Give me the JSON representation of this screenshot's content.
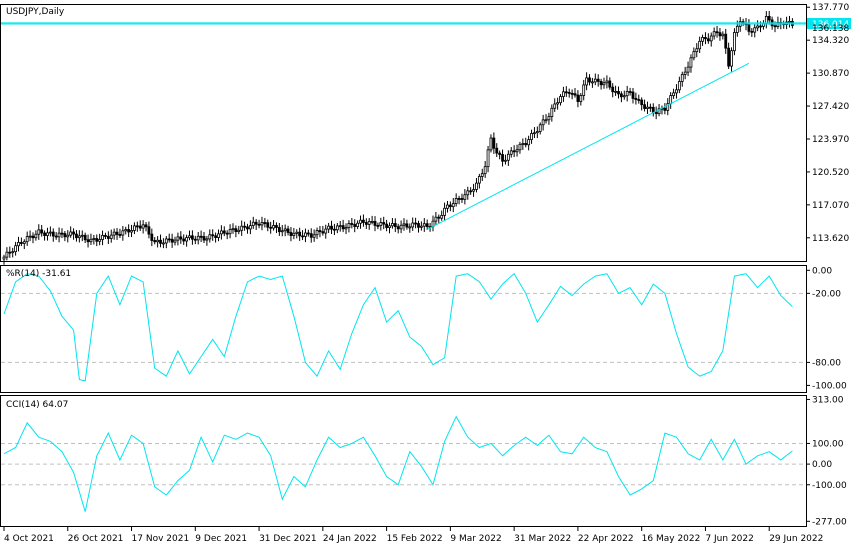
{
  "chart_data": {
    "type": "candlestick",
    "symbol_label": "USDJPY,Daily",
    "colors": {
      "background": "#ffffff",
      "candle": "#000000",
      "indicator_line": "#00e5ee",
      "trend_line": "#00e5ee",
      "price_line": "#00e5ee",
      "grid_dashed": "#c0c0c0",
      "frame": "#000000"
    },
    "price_panel": {
      "ylim": [
        111.4,
        137.9
      ],
      "y_ticks": [
        "137.770",
        "134.320",
        "130.870",
        "127.420",
        "123.970",
        "120.520",
        "117.070",
        "113.620"
      ],
      "current_price_labels": [
        {
          "value": "136.014",
          "highlight": true
        },
        {
          "value": "136.138",
          "highlight": false
        }
      ],
      "trend_line": {
        "from": {
          "bar": 146,
          "price": 114.5
        },
        "to": {
          "bar": 257,
          "price": 131.9
        }
      }
    },
    "x_labels": [
      {
        "bar": 0,
        "text": "4 Oct 2021"
      },
      {
        "bar": 22,
        "text": "26 Oct 2021"
      },
      {
        "bar": 44,
        "text": "17 Nov 2021"
      },
      {
        "bar": 66,
        "text": "9 Dec 2021"
      },
      {
        "bar": 88,
        "text": "31 Dec 2021"
      },
      {
        "bar": 110,
        "text": "24 Jan 2022"
      },
      {
        "bar": 132,
        "text": "15 Feb 2022"
      },
      {
        "bar": 154,
        "text": "9 Mar 2022"
      },
      {
        "bar": 176,
        "text": "31 Mar 2022"
      },
      {
        "bar": 198,
        "text": "22 Apr 2022"
      },
      {
        "bar": 220,
        "text": "16 May 2022"
      },
      {
        "bar": 242,
        "text": "7 Jun 2022"
      },
      {
        "bar": 264,
        "text": "29 Jun 2022"
      }
    ],
    "candles": [
      {
        "bar": 0,
        "close": 111.6
      },
      {
        "bar": 6,
        "close": 113.2
      },
      {
        "bar": 12,
        "close": 114.2
      },
      {
        "bar": 18,
        "close": 113.9
      },
      {
        "bar": 24,
        "close": 114.0
      },
      {
        "bar": 30,
        "close": 113.3
      },
      {
        "bar": 36,
        "close": 113.8
      },
      {
        "bar": 42,
        "close": 114.3
      },
      {
        "bar": 48,
        "close": 115.0
      },
      {
        "bar": 52,
        "close": 113.1
      },
      {
        "bar": 58,
        "close": 113.4
      },
      {
        "bar": 64,
        "close": 113.6
      },
      {
        "bar": 70,
        "close": 113.6
      },
      {
        "bar": 76,
        "close": 114.2
      },
      {
        "bar": 82,
        "close": 114.6
      },
      {
        "bar": 88,
        "close": 115.2
      },
      {
        "bar": 94,
        "close": 114.6
      },
      {
        "bar": 100,
        "close": 114.0
      },
      {
        "bar": 106,
        "close": 113.9
      },
      {
        "bar": 112,
        "close": 114.6
      },
      {
        "bar": 118,
        "close": 114.8
      },
      {
        "bar": 124,
        "close": 115.3
      },
      {
        "bar": 130,
        "close": 115.0
      },
      {
        "bar": 136,
        "close": 114.8
      },
      {
        "bar": 142,
        "close": 115.0
      },
      {
        "bar": 146,
        "close": 114.8
      },
      {
        "bar": 150,
        "close": 115.8
      },
      {
        "bar": 153,
        "close": 116.9
      },
      {
        "bar": 156,
        "close": 117.5
      },
      {
        "bar": 160,
        "close": 118.3
      },
      {
        "bar": 163,
        "close": 119.2
      },
      {
        "bar": 166,
        "close": 121.2
      },
      {
        "bar": 168,
        "close": 124.0
      },
      {
        "bar": 170,
        "close": 122.5
      },
      {
        "bar": 172,
        "close": 121.7
      },
      {
        "bar": 176,
        "close": 122.8
      },
      {
        "bar": 180,
        "close": 123.6
      },
      {
        "bar": 184,
        "close": 125.0
      },
      {
        "bar": 188,
        "close": 126.5
      },
      {
        "bar": 192,
        "close": 128.5
      },
      {
        "bar": 195,
        "close": 129.0
      },
      {
        "bar": 198,
        "close": 128.0
      },
      {
        "bar": 201,
        "close": 130.2
      },
      {
        "bar": 204,
        "close": 130.0
      },
      {
        "bar": 208,
        "close": 129.8
      },
      {
        "bar": 212,
        "close": 128.5
      },
      {
        "bar": 216,
        "close": 128.8
      },
      {
        "bar": 219,
        "close": 127.8
      },
      {
        "bar": 222,
        "close": 127.2
      },
      {
        "bar": 225,
        "close": 126.8
      },
      {
        "bar": 228,
        "close": 127.2
      },
      {
        "bar": 231,
        "close": 128.8
      },
      {
        "bar": 234,
        "close": 130.5
      },
      {
        "bar": 237,
        "close": 132.3
      },
      {
        "bar": 240,
        "close": 134.3
      },
      {
        "bar": 243,
        "close": 134.5
      },
      {
        "bar": 246,
        "close": 135.2
      },
      {
        "bar": 248,
        "close": 134.8
      },
      {
        "bar": 250,
        "close": 131.8
      },
      {
        "bar": 252,
        "close": 134.9
      },
      {
        "bar": 254,
        "close": 136.5
      },
      {
        "bar": 257,
        "close": 135.3
      },
      {
        "bar": 260,
        "close": 135.6
      },
      {
        "bar": 263,
        "close": 136.6
      },
      {
        "bar": 266,
        "close": 135.8
      },
      {
        "bar": 269,
        "close": 136.2
      },
      {
        "bar": 272,
        "close": 136.0
      }
    ],
    "wpr_panel": {
      "label": "%R(14) -31.61",
      "ylim": [
        -104,
        2
      ],
      "y_ticks": [
        {
          "value": 0,
          "text": "0.00"
        },
        {
          "value": -20,
          "text": "-20.00"
        },
        {
          "value": -80,
          "text": "-80.00"
        },
        {
          "value": -100,
          "text": "-100.00"
        }
      ],
      "levels": [
        -20,
        -80
      ],
      "values": [
        {
          "bar": 0,
          "value": -38
        },
        {
          "bar": 4,
          "value": -10
        },
        {
          "bar": 8,
          "value": -3
        },
        {
          "bar": 12,
          "value": -5
        },
        {
          "bar": 16,
          "value": -18
        },
        {
          "bar": 20,
          "value": -40
        },
        {
          "bar": 24,
          "value": -52
        },
        {
          "bar": 26,
          "value": -95
        },
        {
          "bar": 28,
          "value": -96
        },
        {
          "bar": 32,
          "value": -20
        },
        {
          "bar": 36,
          "value": -5
        },
        {
          "bar": 40,
          "value": -30
        },
        {
          "bar": 44,
          "value": -5
        },
        {
          "bar": 48,
          "value": -10
        },
        {
          "bar": 52,
          "value": -85
        },
        {
          "bar": 56,
          "value": -92
        },
        {
          "bar": 60,
          "value": -70
        },
        {
          "bar": 64,
          "value": -90
        },
        {
          "bar": 68,
          "value": -75
        },
        {
          "bar": 72,
          "value": -60
        },
        {
          "bar": 76,
          "value": -75
        },
        {
          "bar": 80,
          "value": -40
        },
        {
          "bar": 84,
          "value": -10
        },
        {
          "bar": 88,
          "value": -5
        },
        {
          "bar": 92,
          "value": -8
        },
        {
          "bar": 96,
          "value": -5
        },
        {
          "bar": 100,
          "value": -40
        },
        {
          "bar": 104,
          "value": -80
        },
        {
          "bar": 108,
          "value": -92
        },
        {
          "bar": 112,
          "value": -70
        },
        {
          "bar": 116,
          "value": -86
        },
        {
          "bar": 120,
          "value": -55
        },
        {
          "bar": 124,
          "value": -30
        },
        {
          "bar": 128,
          "value": -15
        },
        {
          "bar": 132,
          "value": -45
        },
        {
          "bar": 136,
          "value": -35
        },
        {
          "bar": 140,
          "value": -58
        },
        {
          "bar": 144,
          "value": -66
        },
        {
          "bar": 148,
          "value": -82
        },
        {
          "bar": 152,
          "value": -76
        },
        {
          "bar": 156,
          "value": -5
        },
        {
          "bar": 160,
          "value": -3
        },
        {
          "bar": 164,
          "value": -10
        },
        {
          "bar": 168,
          "value": -25
        },
        {
          "bar": 172,
          "value": -12
        },
        {
          "bar": 176,
          "value": -3
        },
        {
          "bar": 180,
          "value": -20
        },
        {
          "bar": 184,
          "value": -45
        },
        {
          "bar": 188,
          "value": -30
        },
        {
          "bar": 192,
          "value": -14
        },
        {
          "bar": 196,
          "value": -22
        },
        {
          "bar": 200,
          "value": -12
        },
        {
          "bar": 204,
          "value": -5
        },
        {
          "bar": 208,
          "value": -3
        },
        {
          "bar": 212,
          "value": -20
        },
        {
          "bar": 216,
          "value": -15
        },
        {
          "bar": 220,
          "value": -30
        },
        {
          "bar": 224,
          "value": -12
        },
        {
          "bar": 228,
          "value": -20
        },
        {
          "bar": 232,
          "value": -55
        },
        {
          "bar": 236,
          "value": -84
        },
        {
          "bar": 240,
          "value": -92
        },
        {
          "bar": 244,
          "value": -88
        },
        {
          "bar": 248,
          "value": -70
        },
        {
          "bar": 252,
          "value": -5
        },
        {
          "bar": 256,
          "value": -3
        },
        {
          "bar": 260,
          "value": -15
        },
        {
          "bar": 264,
          "value": -5
        },
        {
          "bar": 268,
          "value": -22
        },
        {
          "bar": 272,
          "value": -31.61
        }
      ]
    },
    "cci_panel": {
      "label": "CCI(14) 64.07",
      "ylim": [
        -290,
        320
      ],
      "y_ticks": [
        {
          "value": 313,
          "text": "313.00"
        },
        {
          "value": 100,
          "text": "100.00"
        },
        {
          "value": 0,
          "text": "0.00"
        },
        {
          "value": -100,
          "text": "-100.00"
        },
        {
          "value": -277,
          "text": "-277.00"
        }
      ],
      "levels": [
        100,
        0,
        -100
      ],
      "values": [
        {
          "bar": 0,
          "value": 50
        },
        {
          "bar": 4,
          "value": 80
        },
        {
          "bar": 8,
          "value": 200
        },
        {
          "bar": 12,
          "value": 130
        },
        {
          "bar": 16,
          "value": 110
        },
        {
          "bar": 20,
          "value": 60
        },
        {
          "bar": 24,
          "value": -40
        },
        {
          "bar": 28,
          "value": -230
        },
        {
          "bar": 32,
          "value": 40
        },
        {
          "bar": 36,
          "value": 150
        },
        {
          "bar": 40,
          "value": 20
        },
        {
          "bar": 44,
          "value": 140
        },
        {
          "bar": 48,
          "value": 100
        },
        {
          "bar": 52,
          "value": -110
        },
        {
          "bar": 56,
          "value": -150
        },
        {
          "bar": 60,
          "value": -80
        },
        {
          "bar": 64,
          "value": -30
        },
        {
          "bar": 68,
          "value": 130
        },
        {
          "bar": 72,
          "value": 10
        },
        {
          "bar": 76,
          "value": 140
        },
        {
          "bar": 80,
          "value": 120
        },
        {
          "bar": 84,
          "value": 150
        },
        {
          "bar": 88,
          "value": 130
        },
        {
          "bar": 92,
          "value": 40
        },
        {
          "bar": 96,
          "value": -170
        },
        {
          "bar": 100,
          "value": -60
        },
        {
          "bar": 104,
          "value": -110
        },
        {
          "bar": 108,
          "value": 20
        },
        {
          "bar": 112,
          "value": 130
        },
        {
          "bar": 116,
          "value": 80
        },
        {
          "bar": 120,
          "value": 100
        },
        {
          "bar": 124,
          "value": 130
        },
        {
          "bar": 128,
          "value": 40
        },
        {
          "bar": 132,
          "value": -60
        },
        {
          "bar": 136,
          "value": -100
        },
        {
          "bar": 140,
          "value": 60
        },
        {
          "bar": 144,
          "value": -10
        },
        {
          "bar": 148,
          "value": -100
        },
        {
          "bar": 152,
          "value": 110
        },
        {
          "bar": 156,
          "value": 230
        },
        {
          "bar": 160,
          "value": 130
        },
        {
          "bar": 164,
          "value": 80
        },
        {
          "bar": 168,
          "value": 100
        },
        {
          "bar": 172,
          "value": 40
        },
        {
          "bar": 176,
          "value": 90
        },
        {
          "bar": 180,
          "value": 130
        },
        {
          "bar": 184,
          "value": 90
        },
        {
          "bar": 188,
          "value": 140
        },
        {
          "bar": 192,
          "value": 60
        },
        {
          "bar": 196,
          "value": 50
        },
        {
          "bar": 200,
          "value": 130
        },
        {
          "bar": 204,
          "value": 80
        },
        {
          "bar": 208,
          "value": 60
        },
        {
          "bar": 212,
          "value": -60
        },
        {
          "bar": 216,
          "value": -150
        },
        {
          "bar": 220,
          "value": -120
        },
        {
          "bar": 224,
          "value": -80
        },
        {
          "bar": 228,
          "value": 150
        },
        {
          "bar": 232,
          "value": 130
        },
        {
          "bar": 236,
          "value": 50
        },
        {
          "bar": 240,
          "value": 20
        },
        {
          "bar": 244,
          "value": 120
        },
        {
          "bar": 248,
          "value": 20
        },
        {
          "bar": 252,
          "value": 120
        },
        {
          "bar": 256,
          "value": 0
        },
        {
          "bar": 260,
          "value": 40
        },
        {
          "bar": 264,
          "value": 60
        },
        {
          "bar": 268,
          "value": 20
        },
        {
          "bar": 272,
          "value": 64.07
        }
      ]
    }
  }
}
